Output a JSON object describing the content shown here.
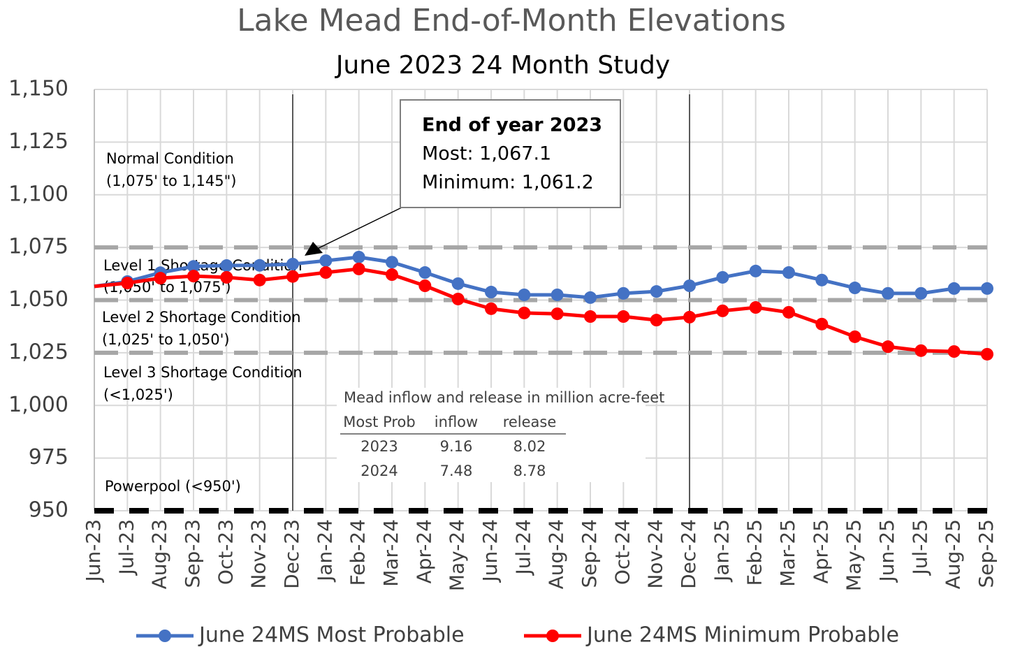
{
  "chart_data": {
    "type": "line",
    "title": "Lake Mead End-of-Month Elevations",
    "subtitle": "June 2023  24 Month Study",
    "categories": [
      "Jun-23",
      "Jul-23",
      "Aug-23",
      "Sep-23",
      "Oct-23",
      "Nov-23",
      "Dec-23",
      "Jan-24",
      "Feb-24",
      "Mar-24",
      "Apr-24",
      "May-24",
      "Jun-24",
      "Jul-24",
      "Aug-24",
      "Sep-24",
      "Oct-24",
      "Nov-24",
      "Dec-24",
      "Jan-25",
      "Feb-25",
      "Mar-25",
      "Apr-25",
      "May-25",
      "Jun-25",
      "Jul-25",
      "Aug-25",
      "Sep-25"
    ],
    "series": [
      {
        "name": "June 24MS Most Probable",
        "color": "#4472c4",
        "values": [
          1056.5,
          1058.8,
          1063,
          1066,
          1066.4,
          1066.5,
          1067.1,
          1068.7,
          1070.4,
          1068,
          1063.1,
          1057.8,
          1053.8,
          1052.5,
          1052.5,
          1051.2,
          1053.2,
          1054.1,
          1056.8,
          1060.8,
          1063.8,
          1063.1,
          1059.5,
          1055.8,
          1053.2,
          1053.2,
          1055.5,
          1055.5
        ]
      },
      {
        "name": "June 24MS Minimum Probable",
        "color": "#ff0000",
        "values": [
          1056.5,
          1058.1,
          1060.4,
          1061.4,
          1060.8,
          1059.5,
          1061.2,
          1063.1,
          1064.8,
          1062.1,
          1056.8,
          1050.5,
          1045.9,
          1043.9,
          1043.5,
          1042.2,
          1042.2,
          1040.5,
          1041.9,
          1044.9,
          1046.5,
          1044.2,
          1038.6,
          1032.6,
          1027.9,
          1026,
          1025.6,
          1024.3
        ]
      }
    ],
    "ylim": [
      950,
      1150
    ],
    "yticks": [
      950,
      975,
      {
        "value": 1000,
        "label": "1,000"
      },
      {
        "value": 1025,
        "label": "1,025"
      },
      {
        "value": 1050,
        "label": "1,050"
      },
      {
        "value": 1075,
        "label": "1,075"
      },
      {
        "value": 1100,
        "label": "1,100"
      },
      {
        "value": 1125,
        "label": "1,125"
      },
      {
        "value": 1150,
        "label": "1,150"
      }
    ],
    "grid": true,
    "legend": "bottom",
    "thresholds": [
      {
        "value": 1075,
        "color": "#a6a6a6"
      },
      {
        "value": 1050,
        "color": "#a6a6a6"
      },
      {
        "value": 1025,
        "color": "#a6a6a6"
      },
      {
        "value": 950,
        "color": "#000000"
      }
    ],
    "vertical_lines_at": [
      "Dec-23",
      "Dec-24"
    ],
    "zone_labels": [
      "Normal Condition",
      "(1,075' to 1,145\")",
      "Level 1 Shortage Condition",
      "(1,050' to 1,075')",
      "Level 2 Shortage Condition",
      "(1,025' to 1,050')",
      "Level 3 Shortage Condition",
      "(<1,025')",
      "Powerpool (<950')"
    ],
    "callout": {
      "title": "End of year 2023",
      "lines": [
        "Most: 1,067.1",
        "Minimum: 1,061.2"
      ]
    },
    "flow_table": {
      "title": "Mead inflow and release in million acre-feet",
      "header": [
        "Most Prob",
        "inflow",
        "release"
      ],
      "rows": [
        [
          "2023",
          "9.16",
          "8.02"
        ],
        [
          "2024",
          "7.48",
          "8.78"
        ]
      ]
    }
  }
}
